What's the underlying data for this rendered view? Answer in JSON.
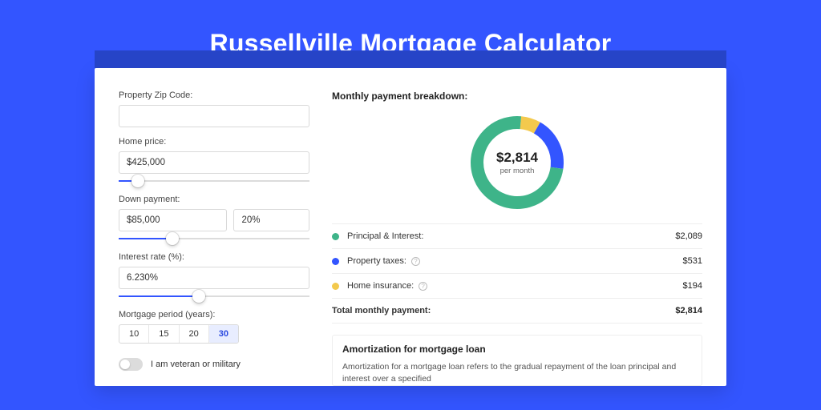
{
  "page": {
    "title": "Russellville Mortgage Calculator",
    "bg_color": "#3355ff",
    "header_shadow_color": "#2644c7"
  },
  "form": {
    "zip": {
      "label": "Property Zip Code:",
      "value": ""
    },
    "home_price": {
      "label": "Home price:",
      "value": "$425,000",
      "slider_pct": 10
    },
    "down_payment": {
      "label": "Down payment:",
      "amount": "$85,000",
      "pct": "20%",
      "slider_pct": 28
    },
    "interest_rate": {
      "label": "Interest rate (%):",
      "value": "6.230%",
      "slider_pct": 42
    },
    "period": {
      "label": "Mortgage period (years):",
      "options": [
        "10",
        "15",
        "20",
        "30"
      ],
      "selected_index": 3
    },
    "veteran": {
      "label": "I am veteran or military",
      "checked": false
    }
  },
  "breakdown": {
    "heading": "Monthly payment breakdown:",
    "center_amount": "$2,814",
    "center_sub": "per month",
    "items": [
      {
        "label": "Principal & Interest:",
        "amount": "$2,089",
        "color": "#3eb489",
        "info": false,
        "value_num": 2089
      },
      {
        "label": "Property taxes:",
        "amount": "$531",
        "color": "#3355ff",
        "info": true,
        "value_num": 531
      },
      {
        "label": "Home insurance:",
        "amount": "$194",
        "color": "#f3c94d",
        "info": true,
        "value_num": 194
      }
    ],
    "total": {
      "label": "Total monthly payment:",
      "amount": "$2,814"
    },
    "donut": {
      "stroke_width": 16
    }
  },
  "amortization": {
    "title": "Amortization for mortgage loan",
    "text": "Amortization for a mortgage loan refers to the gradual repayment of the loan principal and interest over a specified"
  }
}
